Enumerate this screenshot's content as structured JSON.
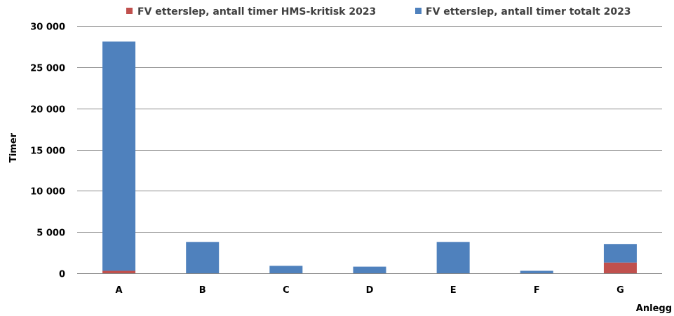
{
  "chart_data": {
    "type": "bar",
    "stacked": true,
    "categories": [
      "A",
      "B",
      "C",
      "D",
      "E",
      "F",
      "G"
    ],
    "series": [
      {
        "name": "FV etterslep, antall timer HMS-kritisk  2023",
        "color": "#c0504d",
        "values": [
          300,
          0,
          0,
          0,
          0,
          0,
          1300
        ]
      },
      {
        "name": "FV etterslep, antall timer totalt 2023",
        "color": "#4f81bd",
        "values": [
          27800,
          3800,
          900,
          800,
          3800,
          300,
          2250
        ]
      }
    ],
    "ylim": [
      0,
      30000
    ],
    "yticks": [
      0,
      5000,
      10000,
      15000,
      20000,
      25000,
      30000
    ],
    "ytick_labels": [
      "0",
      "5 000",
      "10 000",
      "15 000",
      "20 000",
      "25 000",
      "30 000"
    ],
    "xlabel": "Anlegg",
    "ylabel": "Timer",
    "grid": true,
    "legend_position": "top"
  }
}
